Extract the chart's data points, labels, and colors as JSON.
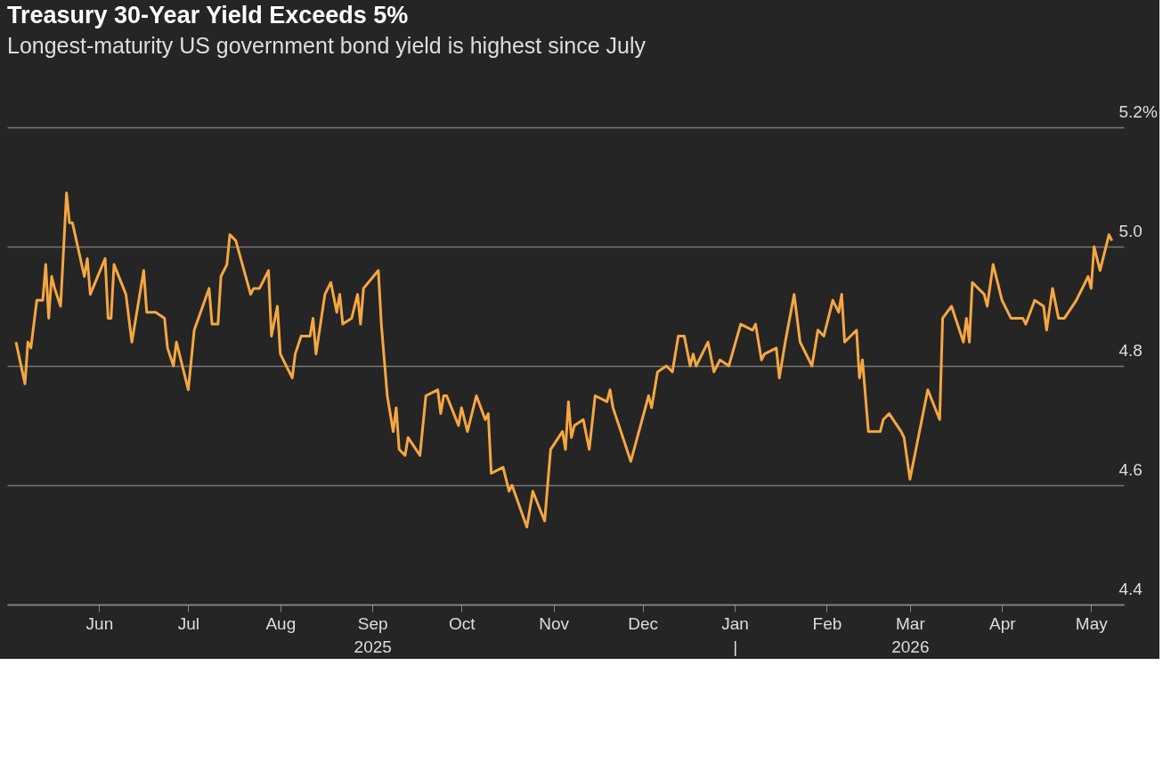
{
  "chart_data": {
    "type": "line",
    "title": "Treasury 30-Year Yield Exceeds 5%",
    "subtitle": "Longest-maturity US government bond yield is highest since July",
    "x": [
      "2025-05-04",
      "2025-05-07",
      "2025-05-08",
      "2025-05-09",
      "2025-05-11",
      "2025-05-13",
      "2025-05-14",
      "2025-05-15",
      "2025-05-16",
      "2025-05-17",
      "2025-05-19",
      "2025-05-21",
      "2025-05-22",
      "2025-05-23",
      "2025-05-27",
      "2025-05-28",
      "2025-05-29",
      "2025-06-03",
      "2025-06-04",
      "2025-06-05",
      "2025-06-06",
      "2025-06-10",
      "2025-06-12",
      "2025-06-16",
      "2025-06-17",
      "2025-06-20",
      "2025-06-23",
      "2025-06-24",
      "2025-06-26",
      "2025-06-27",
      "2025-07-01",
      "2025-07-03",
      "2025-07-08",
      "2025-07-09",
      "2025-07-11",
      "2025-07-12",
      "2025-07-14",
      "2025-07-15",
      "2025-07-17",
      "2025-07-22",
      "2025-07-23",
      "2025-07-25",
      "2025-07-28",
      "2025-07-29",
      "2025-07-31",
      "2025-08-01",
      "2025-08-05",
      "2025-08-06",
      "2025-08-08",
      "2025-08-11",
      "2025-08-12",
      "2025-08-13",
      "2025-08-16",
      "2025-08-18",
      "2025-08-20",
      "2025-08-21",
      "2025-08-22",
      "2025-08-25",
      "2025-08-27",
      "2025-08-28",
      "2025-08-29",
      "2025-09-03",
      "2025-09-04",
      "2025-09-06",
      "2025-09-08",
      "2025-09-09",
      "2025-09-10",
      "2025-09-12",
      "2025-09-13",
      "2025-09-17",
      "2025-09-19",
      "2025-09-23",
      "2025-09-24",
      "2025-09-25",
      "2025-09-26",
      "2025-09-30",
      "2025-10-01",
      "2025-10-03",
      "2025-10-06",
      "2025-10-09",
      "2025-10-10",
      "2025-10-11",
      "2025-10-15",
      "2025-10-17",
      "2025-10-18",
      "2025-10-23",
      "2025-10-25",
      "2025-10-29",
      "2025-10-31",
      "2025-11-04",
      "2025-11-05",
      "2025-11-06",
      "2025-11-07",
      "2025-11-08",
      "2025-11-11",
      "2025-11-13",
      "2025-11-15",
      "2025-11-19",
      "2025-11-20",
      "2025-11-21",
      "2025-11-27",
      "2025-12-03",
      "2025-12-04",
      "2025-12-06",
      "2025-12-09",
      "2025-12-11",
      "2025-12-13",
      "2025-12-15",
      "2025-12-17",
      "2025-12-18",
      "2025-12-19",
      "2025-12-23",
      "2025-12-25",
      "2025-12-27",
      "2025-12-30",
      "2026-01-03",
      "2026-01-07",
      "2026-01-08",
      "2026-01-10",
      "2026-01-11",
      "2026-01-15",
      "2026-01-16",
      "2026-01-18",
      "2026-01-21",
      "2026-01-23",
      "2026-01-27",
      "2026-01-29",
      "2026-01-31",
      "2026-02-03",
      "2026-02-05",
      "2026-02-06",
      "2026-02-07",
      "2026-02-11",
      "2026-02-12",
      "2026-02-13",
      "2026-02-15",
      "2026-02-19",
      "2026-02-20",
      "2026-02-22",
      "2026-02-26",
      "2026-02-27",
      "2026-03-01",
      "2026-03-07",
      "2026-03-11",
      "2026-03-12",
      "2026-03-15",
      "2026-03-19",
      "2026-03-20",
      "2026-03-21",
      "2026-03-22",
      "2026-03-26",
      "2026-03-27",
      "2026-03-29",
      "2026-04-01",
      "2026-04-04",
      "2026-04-08",
      "2026-04-09",
      "2026-04-12",
      "2026-04-15",
      "2026-04-16",
      "2026-04-18",
      "2026-04-20",
      "2026-04-22",
      "2026-04-26",
      "2026-04-30",
      "2026-05-01",
      "2026-05-02",
      "2026-05-04",
      "2026-05-07",
      "2026-05-08"
    ],
    "series": [
      {
        "color": "#f5a742",
        "values": [
          4.84,
          4.77,
          4.84,
          4.83,
          4.91,
          4.91,
          4.97,
          4.88,
          4.95,
          4.93,
          4.9,
          5.09,
          5.04,
          5.04,
          4.95,
          4.98,
          4.92,
          4.98,
          4.88,
          4.88,
          4.97,
          4.92,
          4.84,
          4.96,
          4.89,
          4.89,
          4.88,
          4.83,
          4.8,
          4.84,
          4.76,
          4.86,
          4.93,
          4.87,
          4.87,
          4.95,
          4.97,
          5.02,
          5.01,
          4.92,
          4.93,
          4.93,
          4.96,
          4.85,
          4.9,
          4.82,
          4.78,
          4.82,
          4.85,
          4.85,
          4.88,
          4.82,
          4.92,
          4.94,
          4.89,
          4.92,
          4.87,
          4.88,
          4.92,
          4.87,
          4.93,
          4.96,
          4.87,
          4.75,
          4.69,
          4.73,
          4.66,
          4.65,
          4.68,
          4.65,
          4.75,
          4.76,
          4.72,
          4.75,
          4.75,
          4.7,
          4.73,
          4.69,
          4.75,
          4.71,
          4.72,
          4.62,
          4.63,
          4.59,
          4.6,
          4.53,
          4.59,
          4.54,
          4.66,
          4.69,
          4.66,
          4.74,
          4.68,
          4.7,
          4.71,
          4.66,
          4.75,
          4.74,
          4.76,
          4.73,
          4.64,
          4.75,
          4.73,
          4.79,
          4.8,
          4.79,
          4.85,
          4.85,
          4.8,
          4.82,
          4.8,
          4.84,
          4.79,
          4.81,
          4.8,
          4.87,
          4.86,
          4.87,
          4.81,
          4.82,
          4.83,
          4.78,
          4.84,
          4.92,
          4.84,
          4.8,
          4.86,
          4.85,
          4.91,
          4.89,
          4.92,
          4.84,
          4.86,
          4.78,
          4.81,
          4.69,
          4.69,
          4.71,
          4.72,
          4.69,
          4.68,
          4.61,
          4.76,
          4.71,
          4.88,
          4.9,
          4.84,
          4.88,
          4.84,
          4.94,
          4.92,
          4.9,
          4.97,
          4.91,
          4.88,
          4.88,
          4.87,
          4.91,
          4.9,
          4.86,
          4.93,
          4.88,
          4.88,
          4.91,
          4.95,
          4.93,
          5.0,
          4.96,
          5.02,
          5.01
        ]
      }
    ],
    "xlim": [
      "2025-05-01",
      "2026-05-12"
    ],
    "xticks": [
      {
        "value": "2025-06-01",
        "label": "Jun"
      },
      {
        "value": "2025-07-01",
        "label": "Jul"
      },
      {
        "value": "2025-08-01",
        "label": "Aug"
      },
      {
        "value": "2025-09-01",
        "label": "Sep\n2025"
      },
      {
        "value": "2025-10-01",
        "label": "Oct"
      },
      {
        "value": "2025-11-01",
        "label": "Nov"
      },
      {
        "value": "2025-12-01",
        "label": "Dec"
      },
      {
        "value": "2026-01-01",
        "label": "Jan\n|"
      },
      {
        "value": "2026-02-01",
        "label": "Feb"
      },
      {
        "value": "2026-03-01",
        "label": "Mar\n2026"
      },
      {
        "value": "2026-04-01",
        "label": "Apr"
      },
      {
        "value": "2026-05-01",
        "label": "May"
      }
    ],
    "ylim": [
      4.4,
      5.2
    ],
    "yticks": [
      {
        "value": 4.4,
        "label": "4.4"
      },
      {
        "value": 4.6,
        "label": "4.6"
      },
      {
        "value": 4.8,
        "label": "4.8"
      },
      {
        "value": 5.0,
        "label": "5.0"
      },
      {
        "value": 5.2,
        "label": "5.2%"
      }
    ],
    "grid": "y",
    "line_style": "solid",
    "marker": "none"
  }
}
